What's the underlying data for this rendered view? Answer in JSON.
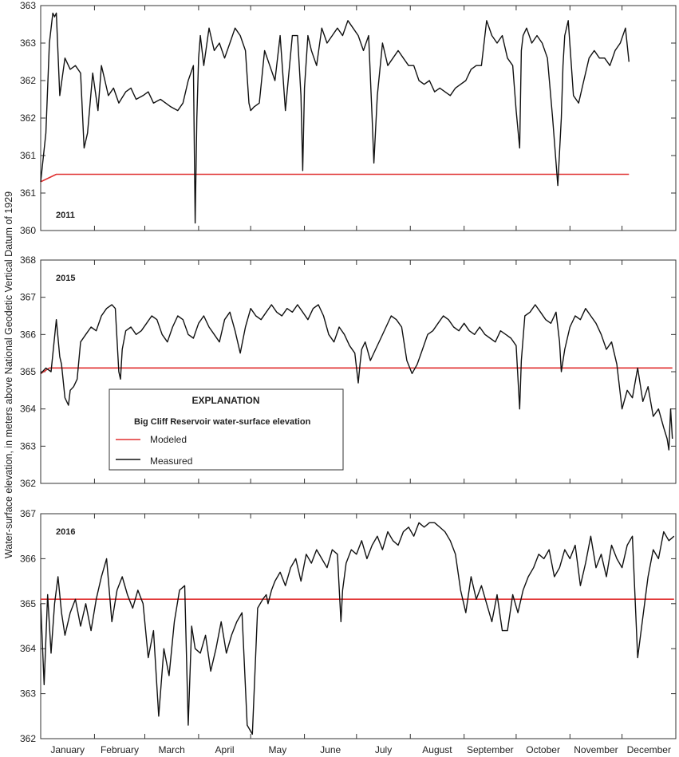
{
  "colors": {
    "modeled": "#e03131",
    "measured": "#111111",
    "frame": "#333333"
  },
  "chart_data": {
    "type": "line",
    "ylabel": "Water-surface elevation, in meters above National Geodetic Vertical Datum of 1929",
    "months": [
      "January",
      "February",
      "March",
      "April",
      "May",
      "June",
      "July",
      "August",
      "September",
      "October",
      "November",
      "December"
    ],
    "legend": {
      "title": "EXPLANATION",
      "subtitle": "Big Cliff Reservoir  water-surface elevation",
      "items": [
        {
          "label": "Modeled",
          "color": "#e03131"
        },
        {
          "label": "Measured",
          "color": "#111111"
        }
      ]
    },
    "panels": [
      {
        "year": "2011",
        "ylim": [
          360,
          363
        ],
        "yticks": [
          "360",
          "361",
          "361",
          "362",
          "362",
          "363",
          "363"
        ],
        "series": [
          {
            "name": "Modeled",
            "x": [
              1,
              10,
              50,
              150,
              250,
              340
            ],
            "y": [
              360.65,
              360.75,
              360.75,
              360.75,
              360.75,
              360.75
            ]
          },
          {
            "name": "Measured",
            "x": [
              1,
              4,
              6,
              8,
              9,
              10,
              12,
              15,
              18,
              21,
              24,
              25,
              26,
              28,
              31,
              34,
              36,
              38,
              40,
              43,
              46,
              50,
              53,
              56,
              60,
              63,
              66,
              70,
              73,
              76,
              80,
              83,
              86,
              89,
              90,
              91,
              92,
              93,
              95,
              98,
              101,
              104,
              107,
              110,
              113,
              116,
              119,
              121,
              122,
              124,
              127,
              130,
              133,
              136,
              139,
              142,
              146,
              149,
              151,
              152,
              153,
              155,
              157,
              160,
              163,
              166,
              169,
              172,
              175,
              178,
              181,
              184,
              187,
              190,
              192,
              193,
              195,
              198,
              201,
              204,
              207,
              210,
              213,
              216,
              219,
              222,
              225,
              228,
              231,
              234,
              237,
              240,
              243,
              246,
              249,
              252,
              255,
              258,
              261,
              264,
              267,
              270,
              273,
              275,
              277,
              278,
              279,
              281,
              284,
              287,
              290,
              293,
              296,
              299,
              301,
              302,
              303,
              305,
              308,
              311,
              314,
              317,
              320,
              323,
              326,
              329,
              332,
              335,
              338,
              340
            ],
            "y": [
              360.65,
              361.3,
              362.5,
              362.9,
              362.85,
              362.9,
              361.8,
              362.3,
              362.15,
              362.2,
              362.1,
              361.6,
              361.1,
              361.3,
              362.1,
              361.6,
              362.2,
              362.0,
              361.8,
              361.9,
              361.7,
              361.85,
              361.9,
              361.75,
              361.8,
              361.85,
              361.7,
              361.75,
              361.7,
              361.65,
              361.6,
              361.7,
              362.0,
              362.2,
              360.1,
              361.5,
              362.3,
              362.6,
              362.2,
              362.7,
              362.4,
              362.5,
              362.3,
              362.5,
              362.7,
              362.6,
              362.4,
              361.7,
              361.6,
              361.65,
              361.7,
              362.4,
              362.2,
              362.0,
              362.6,
              361.6,
              362.6,
              362.6,
              361.8,
              360.8,
              361.9,
              362.6,
              362.4,
              362.2,
              362.7,
              362.5,
              362.6,
              362.7,
              362.6,
              362.8,
              362.7,
              362.6,
              362.4,
              362.6,
              361.5,
              360.9,
              361.8,
              362.5,
              362.2,
              362.3,
              362.4,
              362.3,
              362.2,
              362.2,
              362.0,
              361.95,
              362.0,
              361.85,
              361.9,
              361.85,
              361.8,
              361.9,
              361.95,
              362.0,
              362.15,
              362.2,
              362.2,
              362.8,
              362.6,
              362.5,
              362.6,
              362.3,
              362.2,
              361.6,
              361.1,
              362.4,
              362.6,
              362.7,
              362.5,
              362.6,
              362.5,
              362.3,
              361.5,
              360.6,
              361.5,
              362.2,
              362.6,
              362.8,
              361.8,
              361.7,
              362.0,
              362.3,
              362.4,
              362.3,
              362.3,
              362.2,
              362.4,
              362.5,
              362.7,
              362.25
            ]
          }
        ]
      },
      {
        "year": "2015",
        "ylim": [
          362,
          368
        ],
        "yticks": [
          "362",
          "363",
          "364",
          "365",
          "366",
          "367",
          "368"
        ],
        "series": [
          {
            "name": "Modeled",
            "x": [
              1,
              6,
              50,
              150,
              250,
              330,
              365
            ],
            "y": [
              364.95,
              365.1,
              365.1,
              365.1,
              365.1,
              365.1,
              365.1
            ]
          },
          {
            "name": "Measured",
            "x": [
              1,
              4,
              7,
              10,
              12,
              13,
              15,
              17,
              18,
              20,
              22,
              24,
              27,
              30,
              33,
              36,
              39,
              42,
              44,
              46,
              47,
              48,
              50,
              53,
              56,
              59,
              62,
              65,
              68,
              71,
              74,
              77,
              80,
              83,
              86,
              89,
              92,
              95,
              98,
              101,
              104,
              107,
              110,
              113,
              116,
              119,
              122,
              125,
              128,
              131,
              134,
              137,
              140,
              143,
              146,
              149,
              152,
              155,
              158,
              161,
              164,
              167,
              170,
              173,
              176,
              179,
              182,
              184,
              185,
              186,
              188,
              191,
              194,
              197,
              200,
              203,
              206,
              209,
              212,
              215,
              218,
              221,
              224,
              227,
              230,
              233,
              236,
              239,
              242,
              245,
              248,
              251,
              254,
              257,
              260,
              263,
              266,
              269,
              272,
              275,
              277,
              278,
              280,
              283,
              286,
              289,
              292,
              295,
              298,
              300,
              301,
              303,
              306,
              309,
              312,
              315,
              318,
              321,
              324,
              327,
              330,
              333,
              336,
              339,
              342,
              345,
              348,
              351,
              354,
              357,
              360,
              362,
              363,
              364,
              365
            ],
            "y": [
              364.95,
              365.1,
              365.0,
              366.4,
              365.4,
              365.2,
              364.3,
              364.1,
              364.5,
              364.6,
              364.8,
              365.8,
              366.0,
              366.2,
              366.1,
              366.5,
              366.7,
              366.8,
              366.7,
              365.0,
              364.8,
              365.6,
              366.1,
              366.2,
              366.0,
              366.1,
              366.3,
              366.5,
              366.4,
              366.0,
              365.8,
              366.2,
              366.5,
              366.4,
              366.0,
              365.9,
              366.3,
              366.5,
              366.2,
              366.0,
              365.8,
              366.4,
              366.6,
              366.1,
              365.5,
              366.2,
              366.7,
              366.5,
              366.4,
              366.6,
              366.8,
              366.6,
              366.5,
              366.7,
              366.6,
              366.8,
              366.6,
              366.4,
              366.7,
              366.8,
              366.5,
              366.0,
              365.8,
              366.2,
              366.0,
              365.7,
              365.5,
              364.7,
              365.2,
              365.6,
              365.8,
              365.3,
              365.6,
              365.9,
              366.2,
              366.5,
              366.4,
              366.2,
              365.3,
              364.95,
              365.2,
              365.6,
              366.0,
              366.1,
              366.3,
              366.5,
              366.4,
              366.2,
              366.1,
              366.3,
              366.1,
              366.0,
              366.2,
              366.0,
              365.9,
              365.8,
              366.1,
              366.0,
              365.9,
              365.7,
              364.0,
              365.3,
              366.5,
              366.6,
              366.8,
              366.6,
              366.4,
              366.3,
              366.6,
              365.8,
              365.0,
              365.6,
              366.2,
              366.5,
              366.4,
              366.7,
              366.5,
              366.3,
              366.0,
              365.6,
              365.8,
              365.2,
              364.0,
              364.5,
              364.3,
              365.1,
              364.2,
              364.6,
              363.8,
              364.0,
              363.5,
              363.2,
              362.9,
              364.0,
              363.2
            ]
          }
        ]
      },
      {
        "year": "2016",
        "ylim": [
          362,
          367
        ],
        "yticks": [
          "362",
          "363",
          "364",
          "365",
          "366",
          "367"
        ],
        "series": [
          {
            "name": "Modeled",
            "x": [
              1,
              100,
              200,
              300,
              366
            ],
            "y": [
              365.1,
              365.1,
              365.1,
              365.1,
              365.1
            ]
          },
          {
            "name": "Measured",
            "x": [
              1,
              3,
              5,
              7,
              9,
              11,
              13,
              15,
              18,
              21,
              24,
              27,
              30,
              33,
              36,
              39,
              42,
              45,
              48,
              51,
              54,
              57,
              60,
              63,
              66,
              69,
              72,
              75,
              78,
              81,
              84,
              86,
              88,
              90,
              93,
              96,
              99,
              102,
              105,
              108,
              111,
              114,
              117,
              120,
              123,
              126,
              129,
              131,
              132,
              134,
              136,
              139,
              142,
              145,
              148,
              151,
              154,
              157,
              160,
              163,
              166,
              169,
              172,
              174,
              175,
              177,
              180,
              183,
              186,
              189,
              192,
              195,
              198,
              201,
              204,
              207,
              210,
              213,
              216,
              219,
              222,
              225,
              228,
              231,
              234,
              237,
              240,
              243,
              246,
              249,
              252,
              255,
              258,
              261,
              264,
              267,
              270,
              273,
              276,
              279,
              282,
              285,
              288,
              291,
              294,
              297,
              300,
              303,
              306,
              309,
              312,
              315,
              318,
              321,
              324,
              327,
              330,
              333,
              336,
              339,
              342,
              345,
              348,
              351,
              354,
              357,
              360,
              363,
              366
            ],
            "y": [
              365.0,
              363.2,
              365.2,
              363.9,
              365.0,
              365.6,
              364.8,
              364.3,
              364.8,
              365.1,
              364.5,
              365.0,
              364.4,
              365.1,
              365.6,
              366.0,
              364.6,
              365.3,
              365.6,
              365.2,
              364.9,
              365.3,
              365.0,
              363.8,
              364.4,
              362.5,
              364.0,
              363.4,
              364.6,
              365.3,
              365.4,
              362.3,
              364.5,
              364.0,
              363.9,
              364.3,
              363.5,
              364.0,
              364.6,
              363.9,
              364.3,
              364.6,
              364.8,
              362.3,
              362.1,
              364.9,
              365.1,
              365.2,
              365.0,
              365.3,
              365.5,
              365.7,
              365.4,
              365.8,
              366.0,
              365.5,
              366.1,
              365.9,
              366.2,
              366.0,
              365.8,
              366.2,
              366.1,
              364.6,
              365.3,
              365.9,
              366.2,
              366.1,
              366.4,
              366.0,
              366.3,
              366.5,
              366.2,
              366.6,
              366.4,
              366.3,
              366.6,
              366.7,
              366.5,
              366.8,
              366.7,
              366.8,
              366.8,
              366.7,
              366.6,
              366.4,
              366.1,
              365.3,
              364.8,
              365.6,
              365.1,
              365.4,
              365.0,
              364.6,
              365.2,
              364.4,
              364.4,
              365.2,
              364.8,
              365.3,
              365.6,
              365.8,
              366.1,
              366.0,
              366.2,
              365.6,
              365.8,
              366.2,
              366.0,
              366.3,
              365.4,
              365.9,
              366.5,
              365.8,
              366.1,
              365.6,
              366.3,
              366.0,
              365.8,
              366.3,
              366.5,
              363.8,
              364.7,
              365.6,
              366.2,
              366.0,
              366.6,
              366.4,
              366.5
            ]
          }
        ]
      }
    ]
  }
}
